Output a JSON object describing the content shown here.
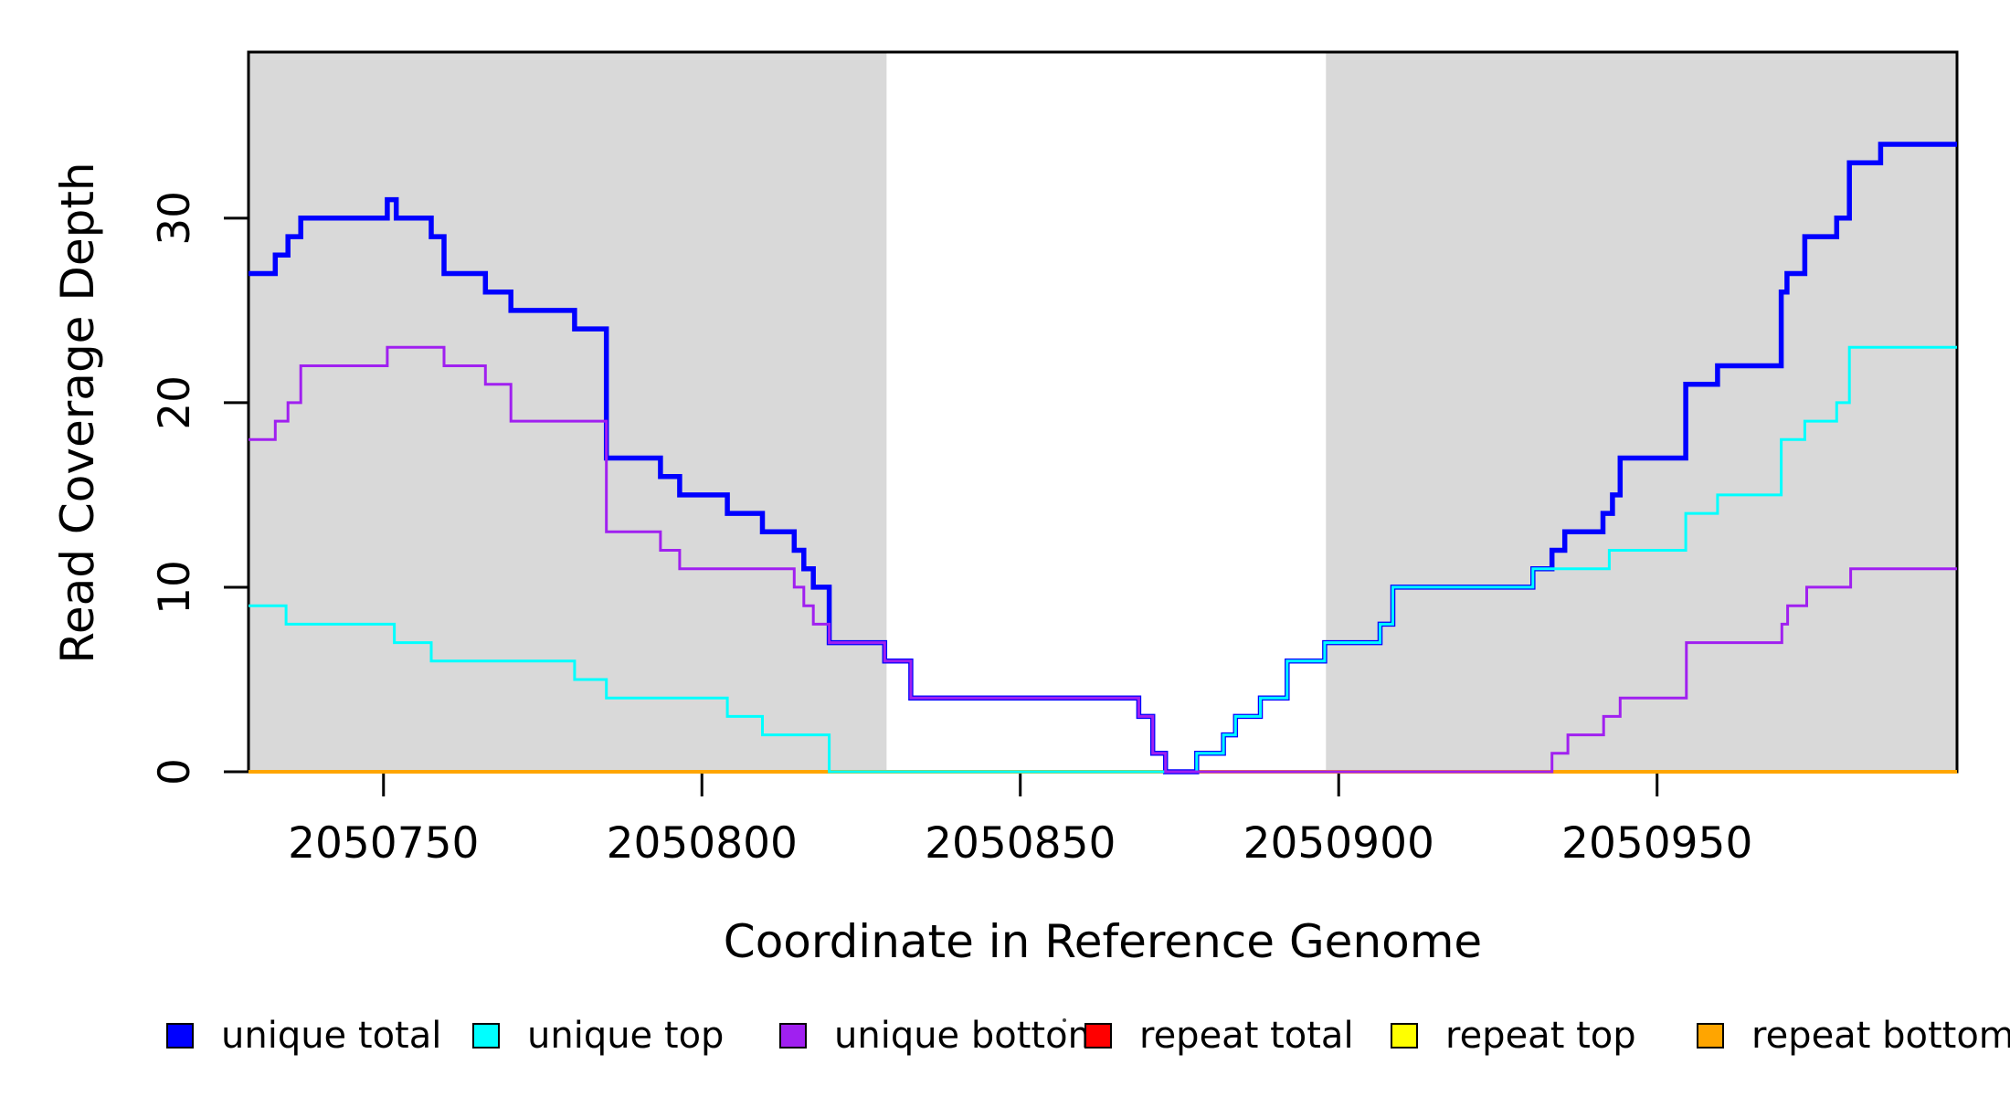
{
  "chart_data": {
    "type": "line",
    "subtype": "step-coverage-plot",
    "title": "",
    "xlabel": "Coordinate in Reference Genome",
    "ylabel": "Read Coverage Depth",
    "xlim": [
      2050728.8,
      2050997.1
    ],
    "ylim": [
      0,
      39
    ],
    "x_ticks": [
      2050750,
      2050800,
      2050850,
      2050900,
      2050950
    ],
    "y_ticks": [
      0,
      10,
      20,
      30
    ],
    "grid": false,
    "shaded_regions": [
      {
        "name": "left-shaded-region",
        "x0": 2050728.8,
        "x1": 2050829.0,
        "color": "#D9D9D9"
      },
      {
        "name": "right-shaded-region",
        "x0": 2050898.0,
        "x1": 2050997.1,
        "color": "#D9D9D9"
      }
    ],
    "series": [
      {
        "name": "repeat total",
        "color": "#FF0000",
        "width": 2.5,
        "points": [
          [
            2050728.8,
            0
          ]
        ]
      },
      {
        "name": "repeat top",
        "color": "#FFFF00",
        "width": 2.5,
        "points": [
          [
            2050728.8,
            0
          ]
        ]
      },
      {
        "name": "repeat bottom",
        "color": "#FFA500",
        "width": 4,
        "points": [
          [
            2050728.8,
            0
          ]
        ]
      },
      {
        "name": "unique total",
        "color": "#0000FF",
        "width": 5.5,
        "points": [
          [
            2050728.8,
            27
          ],
          [
            2050733,
            28
          ],
          [
            2050735,
            29
          ],
          [
            2050737,
            30
          ],
          [
            2050750.6,
            31
          ],
          [
            2050752,
            30
          ],
          [
            2050757.5,
            29
          ],
          [
            2050759.5,
            27
          ],
          [
            2050766,
            26
          ],
          [
            2050770,
            25
          ],
          [
            2050780,
            24
          ],
          [
            2050785,
            17
          ],
          [
            2050793.5,
            16
          ],
          [
            2050796.5,
            15
          ],
          [
            2050804,
            14
          ],
          [
            2050809.5,
            13
          ],
          [
            2050814.5,
            12
          ],
          [
            2050816,
            11
          ],
          [
            2050817.5,
            10
          ],
          [
            2050820,
            7
          ],
          [
            2050828.7,
            6
          ],
          [
            2050832.8,
            4
          ],
          [
            2050868.6,
            3
          ],
          [
            2050870.8,
            1
          ],
          [
            2050872.8,
            0
          ],
          [
            2050877.7,
            1
          ],
          [
            2050881.9,
            2
          ],
          [
            2050883.8,
            3
          ],
          [
            2050887.7,
            4
          ],
          [
            2050891.9,
            6
          ],
          [
            2050897.8,
            7
          ],
          [
            2050906.5,
            8
          ],
          [
            2050908.5,
            10
          ],
          [
            2050930.5,
            11
          ],
          [
            2050933.5,
            12
          ],
          [
            2050935.5,
            13
          ],
          [
            2050941.5,
            14
          ],
          [
            2050943,
            15
          ],
          [
            2050944.2,
            17
          ],
          [
            2050954.5,
            21
          ],
          [
            2050959.5,
            22
          ],
          [
            2050969.5,
            26
          ],
          [
            2050970.4,
            27
          ],
          [
            2050973.2,
            29
          ],
          [
            2050978.2,
            30
          ],
          [
            2050980.2,
            33
          ],
          [
            2050985.1,
            34
          ]
        ]
      },
      {
        "name": "unique top",
        "color": "#00FFFF",
        "width": 3,
        "points": [
          [
            2050728.8,
            9
          ],
          [
            2050734.7,
            8
          ],
          [
            2050751.7,
            7
          ],
          [
            2050757.5,
            6
          ],
          [
            2050780,
            5
          ],
          [
            2050785,
            4
          ],
          [
            2050804,
            3
          ],
          [
            2050809.5,
            2
          ],
          [
            2050820,
            0
          ],
          [
            2050877.7,
            1
          ],
          [
            2050881.9,
            2
          ],
          [
            2050883.8,
            3
          ],
          [
            2050887.7,
            4
          ],
          [
            2050891.9,
            6
          ],
          [
            2050897.8,
            7
          ],
          [
            2050906.5,
            8
          ],
          [
            2050908.5,
            10
          ],
          [
            2050930.5,
            11
          ],
          [
            2050942.5,
            12
          ],
          [
            2050954.5,
            14
          ],
          [
            2050959.5,
            15
          ],
          [
            2050969.5,
            18
          ],
          [
            2050973.2,
            19
          ],
          [
            2050978.2,
            20
          ],
          [
            2050980.2,
            23
          ]
        ]
      },
      {
        "name": "unique bottom",
        "color": "#A020F0",
        "width": 3,
        "points": [
          [
            2050728.8,
            18
          ],
          [
            2050733,
            19
          ],
          [
            2050735,
            20
          ],
          [
            2050737,
            22
          ],
          [
            2050750.6,
            23
          ],
          [
            2050759.5,
            22
          ],
          [
            2050766,
            21
          ],
          [
            2050770,
            19
          ],
          [
            2050785,
            13
          ],
          [
            2050793.5,
            12
          ],
          [
            2050796.5,
            11
          ],
          [
            2050814.5,
            10
          ],
          [
            2050816,
            9
          ],
          [
            2050817.5,
            8
          ],
          [
            2050820,
            7
          ],
          [
            2050828.7,
            6
          ],
          [
            2050832.8,
            4
          ],
          [
            2050868.6,
            3
          ],
          [
            2050870.8,
            1
          ],
          [
            2050872.8,
            0
          ],
          [
            2050933.5,
            1
          ],
          [
            2050936,
            2
          ],
          [
            2050941.6,
            3
          ],
          [
            2050944.2,
            4
          ],
          [
            2050954.6,
            7
          ],
          [
            2050969.6,
            8
          ],
          [
            2050970.5,
            9
          ],
          [
            2050973.5,
            10
          ],
          [
            2050980.4,
            11
          ]
        ]
      }
    ],
    "legend": {
      "position": "bottom",
      "items": [
        {
          "label": "unique total",
          "color": "#0000FF"
        },
        {
          "label": "unique top",
          "color": "#00FFFF"
        },
        {
          "label": "unique bottom",
          "color": "#A020F0"
        },
        {
          "label": "repeat total",
          "color": "#FF0000"
        },
        {
          "label": "repeat top",
          "color": "#FFFF00"
        },
        {
          "label": "repeat bottom",
          "color": "#FFA500"
        }
      ]
    },
    "colors": {
      "axis": "#000000",
      "shading": "#D9D9D9",
      "background": "#FFFFFF"
    }
  }
}
